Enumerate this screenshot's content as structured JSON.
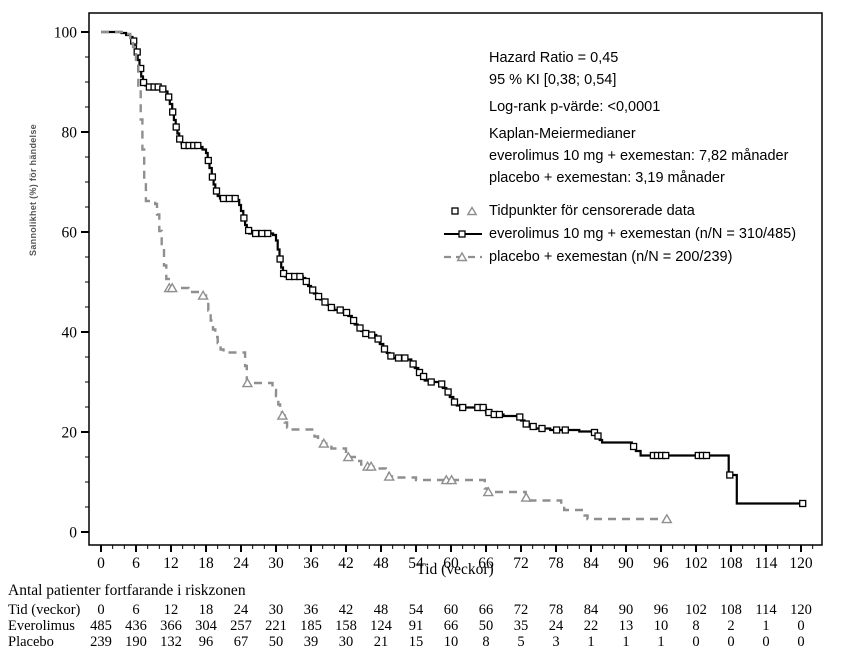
{
  "colors": {
    "everolimus": "#000000",
    "placebo": "#8f8f8f"
  },
  "annotations": {
    "hazard_ratio": "Hazard Ratio = 0,45",
    "ci": "95 % KI [0,38; 0,54]",
    "log_rank": "Log-rank p-värde: <0,0001",
    "km_medians_title": "Kaplan-Meiermedianer",
    "km_median_everolimus": "everolimus 10 mg + exemestan: 7,82 månader",
    "km_median_placebo": "placebo + exemestan: 3,19 månader"
  },
  "legend": {
    "censored_label": "Tidpunkter för censorerade data",
    "everolimus_label": "everolimus 10 mg + exemestan  (n/N = 310/485)",
    "placebo_label": "placebo + exemestan  (n/N = 200/239)"
  },
  "risk_table": {
    "title": "Antal patienter fortfarande i riskzonen",
    "rows": [
      {
        "label": "Tid (veckor)",
        "values": [
          0,
          6,
          12,
          18,
          24,
          30,
          36,
          42,
          48,
          54,
          60,
          66,
          72,
          78,
          84,
          90,
          96,
          102,
          108,
          114,
          120
        ]
      },
      {
        "label": "Everolimus",
        "values": [
          485,
          436,
          366,
          304,
          257,
          221,
          185,
          158,
          124,
          91,
          66,
          50,
          35,
          24,
          22,
          13,
          10,
          8,
          2,
          1,
          0
        ]
      },
      {
        "label": "Placebo",
        "values": [
          239,
          190,
          132,
          96,
          67,
          50,
          39,
          30,
          21,
          15,
          10,
          8,
          5,
          3,
          1,
          1,
          1,
          0,
          0,
          0,
          0
        ]
      }
    ]
  },
  "chart_data": {
    "type": "line",
    "subtype": "kaplan-meier-step",
    "xlabel": "Tid (veckor)",
    "ylabel": "Sannolikhet (%) för händelse",
    "xlim": [
      0,
      120
    ],
    "ylim": [
      0,
      100
    ],
    "x_ticks": [
      0,
      6,
      12,
      18,
      24,
      30,
      36,
      42,
      48,
      54,
      60,
      66,
      72,
      78,
      84,
      90,
      96,
      102,
      108,
      114,
      120
    ],
    "y_ticks": [
      0,
      20,
      40,
      60,
      80,
      100
    ],
    "x_minor_step": 2,
    "y_minor_step": 5,
    "grid": false,
    "legend_position": "inside-top-right",
    "series": [
      {
        "name": "everolimus 10 mg + exemestan",
        "n_events": "310/485",
        "color": "#000000",
        "style": "solid",
        "steps": [
          [
            0,
            100
          ],
          [
            3.5,
            99.8
          ],
          [
            4.3,
            99.4
          ],
          [
            5,
            99
          ],
          [
            5.4,
            98.2
          ],
          [
            5.7,
            97.2
          ],
          [
            6,
            96
          ],
          [
            6.3,
            94.4
          ],
          [
            6.6,
            92.7
          ],
          [
            6.9,
            91.1
          ],
          [
            7.2,
            89.9
          ],
          [
            7.6,
            89.3
          ],
          [
            8.1,
            89
          ],
          [
            10.5,
            88.6
          ],
          [
            11,
            88.1
          ],
          [
            11.4,
            87
          ],
          [
            11.8,
            85.6
          ],
          [
            12.2,
            84
          ],
          [
            12.5,
            82.4
          ],
          [
            12.8,
            81
          ],
          [
            13.1,
            79.7
          ],
          [
            13.4,
            78.6
          ],
          [
            13.8,
            77.7
          ],
          [
            14.2,
            77.3
          ],
          [
            17,
            77
          ],
          [
            17.4,
            76.5
          ],
          [
            18,
            75.8
          ],
          [
            18.3,
            74.3
          ],
          [
            18.6,
            72.8
          ],
          [
            19,
            71
          ],
          [
            19.3,
            69.5
          ],
          [
            19.6,
            68.2
          ],
          [
            20,
            67.2
          ],
          [
            20.4,
            66.7
          ],
          [
            23.3,
            66.4
          ],
          [
            23.7,
            65.4
          ],
          [
            24,
            64.2
          ],
          [
            24.4,
            62.8
          ],
          [
            24.7,
            61.4
          ],
          [
            25,
            60.3
          ],
          [
            25.4,
            59.7
          ],
          [
            29.5,
            59.4
          ],
          [
            30,
            58.3
          ],
          [
            30.3,
            56.5
          ],
          [
            30.6,
            54.6
          ],
          [
            30.9,
            52.9
          ],
          [
            31.2,
            51.7
          ],
          [
            31.6,
            51.1
          ],
          [
            34.6,
            50.8
          ],
          [
            35,
            50.1
          ],
          [
            35.5,
            49.2
          ],
          [
            36,
            48.4
          ],
          [
            36.5,
            47.7
          ],
          [
            37,
            47.1
          ],
          [
            37.6,
            46.5
          ],
          [
            38.2,
            46
          ],
          [
            38.8,
            45.4
          ],
          [
            39.4,
            44.9
          ],
          [
            40,
            44.4
          ],
          [
            41.5,
            43.9
          ],
          [
            42.4,
            43.2
          ],
          [
            43,
            42.3
          ],
          [
            43.5,
            41.5
          ],
          [
            44,
            40.8
          ],
          [
            44.6,
            40.2
          ],
          [
            45.2,
            39.7
          ],
          [
            46,
            39.4
          ],
          [
            47.2,
            38.6
          ],
          [
            47.8,
            37.6
          ],
          [
            48.4,
            36.6
          ],
          [
            49,
            35.8
          ],
          [
            49.5,
            35.2
          ],
          [
            50,
            34.8
          ],
          [
            52.5,
            34.5
          ],
          [
            53.2,
            33.6
          ],
          [
            53.8,
            32.8
          ],
          [
            54.4,
            31.9
          ],
          [
            55,
            31.1
          ],
          [
            55.5,
            30.3
          ],
          [
            56.2,
            30
          ],
          [
            58.2,
            29.6
          ],
          [
            58.6,
            28.8
          ],
          [
            59.2,
            28
          ],
          [
            59.8,
            27
          ],
          [
            60.4,
            26
          ],
          [
            61,
            25.3
          ],
          [
            61.7,
            24.9
          ],
          [
            66,
            23.9
          ],
          [
            67,
            23.5
          ],
          [
            69,
            23.2
          ],
          [
            71.5,
            23
          ],
          [
            72,
            22.3
          ],
          [
            72.6,
            21.6
          ],
          [
            73.2,
            21.1
          ],
          [
            74.4,
            20.7
          ],
          [
            77,
            20.4
          ],
          [
            82,
            20.1
          ],
          [
            84.4,
            19.9
          ],
          [
            84.9,
            19.2
          ],
          [
            85.5,
            18.4
          ],
          [
            85.9,
            17.9
          ],
          [
            91,
            17.1
          ],
          [
            91.7,
            16.2
          ],
          [
            92.5,
            15.3
          ],
          [
            107.5,
            15.3
          ],
          [
            107.6,
            11.4
          ],
          [
            108.9,
            11.4
          ],
          [
            109,
            5.7
          ],
          [
            120.4,
            5.7
          ]
        ],
        "censor_weeks": [
          5.6,
          6.2,
          6.8,
          7.3,
          8.3,
          9.1,
          9.8,
          10.6,
          11.6,
          12.3,
          12.9,
          13.5,
          14.3,
          15.1,
          15.9,
          16.6,
          18.4,
          19.1,
          19.8,
          21,
          22,
          23,
          24.5,
          25.3,
          26.5,
          27.6,
          28.6,
          30.7,
          31.3,
          32.3,
          33.2,
          34.1,
          35.2,
          36.3,
          37.3,
          38.4,
          39.5,
          41,
          42.1,
          43.3,
          44.4,
          45.4,
          46.4,
          47.5,
          48.6,
          49.7,
          51,
          52.1,
          53.5,
          54.6,
          55.3,
          56.6,
          58.4,
          59.5,
          60.6,
          62,
          64.6,
          65.5,
          66.5,
          67.4,
          68.3,
          71.8,
          72.9,
          74.1,
          75.6,
          78.1,
          79.6,
          84.6,
          85.2,
          91.3,
          94.7,
          95.4,
          96.1,
          96.8,
          102.4,
          103.1,
          103.8,
          107.8,
          120.3
        ]
      },
      {
        "name": "placebo + exemestan",
        "n_events": "200/239",
        "color": "#8f8f8f",
        "style": "dashed",
        "steps": [
          [
            0,
            100
          ],
          [
            4,
            99.6
          ],
          [
            5,
            98.8
          ],
          [
            5.5,
            97
          ],
          [
            6,
            93.5
          ],
          [
            6.4,
            88.5
          ],
          [
            6.8,
            82.5
          ],
          [
            7.1,
            76.5
          ],
          [
            7.4,
            70.5
          ],
          [
            7.7,
            66.2
          ],
          [
            9.3,
            65.6
          ],
          [
            9.6,
            63.5
          ],
          [
            10,
            60.2
          ],
          [
            10.4,
            56.8
          ],
          [
            10.8,
            53.3
          ],
          [
            11.2,
            50.6
          ],
          [
            11.6,
            48.8
          ],
          [
            15,
            48
          ],
          [
            17.5,
            47.3
          ],
          [
            18,
            46.2
          ],
          [
            18.4,
            44.3
          ],
          [
            18.8,
            42.3
          ],
          [
            19.2,
            40.5
          ],
          [
            19.6,
            39
          ],
          [
            20,
            37.8
          ],
          [
            20.5,
            36.5
          ],
          [
            21,
            35.9
          ],
          [
            24.7,
            33.2
          ],
          [
            25,
            29.8
          ],
          [
            29.4,
            28.4
          ],
          [
            30,
            27.2
          ],
          [
            30.4,
            25.5
          ],
          [
            30.7,
            24.2
          ],
          [
            31,
            23.3
          ],
          [
            31.5,
            21.9
          ],
          [
            31.9,
            20.9
          ],
          [
            32.4,
            20.5
          ],
          [
            36.2,
            19.9
          ],
          [
            36.6,
            19.1
          ],
          [
            37.2,
            18.5
          ],
          [
            38,
            17.7
          ],
          [
            39.5,
            16.7
          ],
          [
            42,
            15.6
          ],
          [
            42.4,
            15
          ],
          [
            44,
            14.2
          ],
          [
            44.6,
            13.5
          ],
          [
            45.5,
            13.1
          ],
          [
            47,
            12.7
          ],
          [
            48.8,
            11.8
          ],
          [
            49.3,
            11.1
          ],
          [
            49.9,
            10.9
          ],
          [
            54,
            10.4
          ],
          [
            65.8,
            8.7
          ],
          [
            66.3,
            8
          ],
          [
            72.8,
            6.9
          ],
          [
            73.4,
            6.3
          ],
          [
            78.9,
            5.1
          ],
          [
            79.4,
            4.4
          ],
          [
            82.9,
            3.3
          ],
          [
            83.4,
            2.6
          ],
          [
            97,
            2.6
          ]
        ],
        "censor_weeks": [
          11.7,
          12.2,
          17.5,
          25.1,
          31.1,
          38.2,
          42.4,
          45.7,
          46.3,
          49.4,
          59.2,
          60.1,
          66.4,
          72.9,
          97
        ]
      }
    ]
  }
}
